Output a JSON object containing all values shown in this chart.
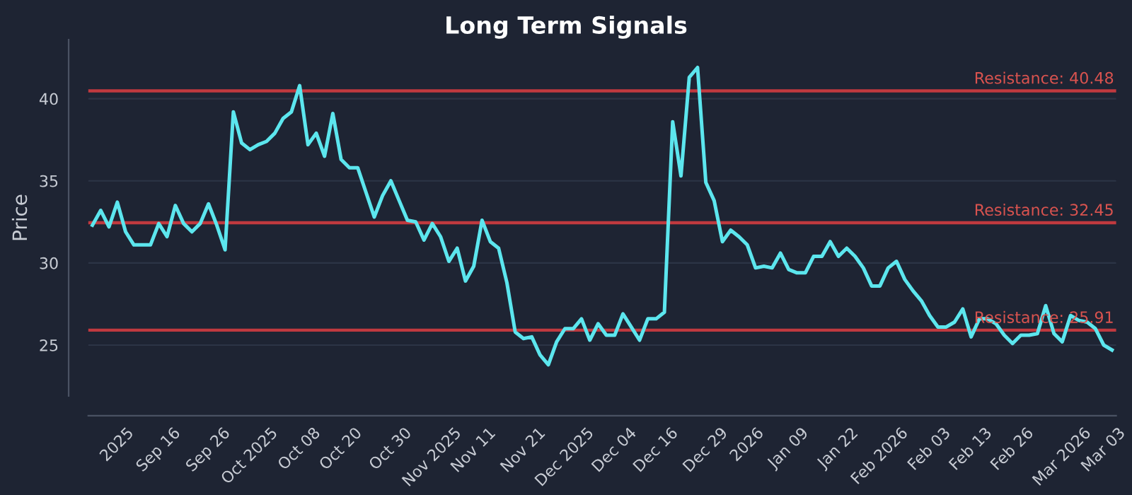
{
  "chart_data": {
    "type": "line",
    "title": "Long Term Signals",
    "ylabel": "Price",
    "categories": [
      null,
      null,
      null,
      "2025",
      null,
      null,
      null,
      null,
      "Sep 16",
      null,
      null,
      null,
      null,
      null,
      "Sep 26",
      null,
      null,
      null,
      null,
      "Oct 2025",
      null,
      null,
      null,
      null,
      null,
      "Oct 08",
      null,
      null,
      null,
      null,
      "Oct 20",
      null,
      null,
      null,
      null,
      null,
      "Oct 30",
      null,
      null,
      null,
      null,
      "Nov 2025",
      null,
      null,
      null,
      null,
      "Nov 11",
      null,
      null,
      null,
      null,
      null,
      "Nov 21",
      null,
      null,
      null,
      null,
      "Dec 2025",
      null,
      null,
      null,
      null,
      null,
      "Dec 04",
      null,
      null,
      null,
      null,
      "Dec 16",
      null,
      null,
      null,
      null,
      null,
      "Dec 29",
      null,
      null,
      null,
      null,
      "2026",
      null,
      null,
      null,
      null,
      "Jan 09",
      null,
      null,
      null,
      null,
      null,
      "Jan 22",
      null,
      null,
      null,
      null,
      "Feb 2026",
      null,
      null,
      null,
      null,
      null,
      "Feb 03",
      null,
      null,
      null,
      null,
      "Feb 13",
      null,
      null,
      null,
      null,
      "Feb 26",
      null,
      null,
      null,
      null,
      null,
      "Mar 2026",
      null,
      null,
      null,
      null,
      "Mar 03",
      null
    ],
    "series": [
      {
        "color": "#5ce6ee",
        "values": [
          32.3,
          33.2,
          32.2,
          33.7,
          31.9,
          31.1,
          31.1,
          31.1,
          32.4,
          31.6,
          33.5,
          32.4,
          31.9,
          32.4,
          33.6,
          32.3,
          30.8,
          39.2,
          37.3,
          36.9,
          37.2,
          37.4,
          37.9,
          38.8,
          39.2,
          40.8,
          37.2,
          37.9,
          36.5,
          39.1,
          36.3,
          35.8,
          35.8,
          34.3,
          32.8,
          34.1,
          35.0,
          33.8,
          32.6,
          32.5,
          31.4,
          32.4,
          31.6,
          30.1,
          30.9,
          28.9,
          29.8,
          32.6,
          31.3,
          30.9,
          28.8,
          25.8,
          25.4,
          25.5,
          24.4,
          23.8,
          25.2,
          26.0,
          26.0,
          26.6,
          25.3,
          26.3,
          25.6,
          25.6,
          26.9,
          26.1,
          25.3,
          26.6,
          26.6,
          27.0,
          38.6,
          35.3,
          41.3,
          41.9,
          34.9,
          33.8,
          31.3,
          32.0,
          31.6,
          31.1,
          29.7,
          29.8,
          29.7,
          30.6,
          29.6,
          29.4,
          29.4,
          30.4,
          30.4,
          31.3,
          30.4,
          30.9,
          30.4,
          29.7,
          28.6,
          28.6,
          29.7,
          30.1,
          29.0,
          28.3,
          27.7,
          26.8,
          26.1,
          26.1,
          26.4,
          27.2,
          25.5,
          26.6,
          26.6,
          26.3,
          25.6,
          25.1,
          25.6,
          25.6,
          25.7,
          27.4,
          25.7,
          25.2,
          26.8,
          26.5,
          26.4,
          26.0,
          25.0,
          24.7
        ]
      }
    ],
    "ylim": [
      21.9,
      43.6
    ],
    "yticks": [
      25,
      30,
      35,
      40
    ],
    "grid": "y",
    "line_style": "solid",
    "marker": "none",
    "ref_lines": [
      {
        "axis": "y",
        "value": 40.48,
        "label": "Resistance: 40.48",
        "color": "#c0393f"
      },
      {
        "axis": "y",
        "value": 32.45,
        "label": "Resistance: 32.45",
        "color": "#c0393f"
      },
      {
        "axis": "y",
        "value": 25.91,
        "label": "Resistance: 25.91",
        "color": "#c0393f"
      }
    ]
  }
}
